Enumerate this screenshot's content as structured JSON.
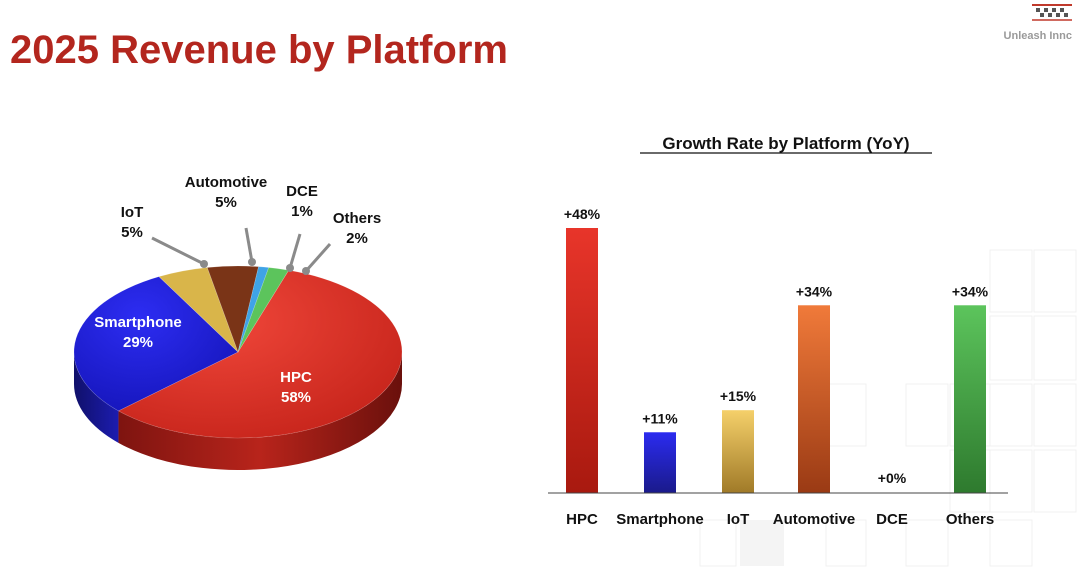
{
  "page": {
    "title": "2025 Revenue by Platform",
    "brand": "Unleash Innc"
  },
  "colors": {
    "title": "#b3261e",
    "hpc": "#d52b1e",
    "smartphone": "#1f1fd6",
    "iot": "#d9b54a",
    "automotive": "#8b3a1a",
    "dce": "#3fa3e6",
    "others": "#5cc45c"
  },
  "chart_data": [
    {
      "type": "pie",
      "title": "",
      "slices": [
        {
          "label": "HPC",
          "value": 58,
          "value_label": "58%",
          "color": "#d52b1e"
        },
        {
          "label": "Smartphone",
          "value": 29,
          "value_label": "29%",
          "color": "#1f1fd6"
        },
        {
          "label": "IoT",
          "value": 5,
          "value_label": "5%",
          "color": "#d9b54a"
        },
        {
          "label": "Automotive",
          "value": 5,
          "value_label": "5%",
          "color": "#7a3417"
        },
        {
          "label": "DCE",
          "value": 1,
          "value_label": "1%",
          "color": "#3fa3e6"
        },
        {
          "label": "Others",
          "value": 2,
          "value_label": "2%",
          "color": "#5cc45c"
        }
      ]
    },
    {
      "type": "bar",
      "title": "Growth Rate by Platform (YoY)",
      "categories": [
        "HPC",
        "Smartphone",
        "IoT",
        "Automotive",
        "DCE",
        "Others"
      ],
      "values": [
        48,
        11,
        15,
        34,
        0,
        34
      ],
      "value_labels": [
        "+48%",
        "+11%",
        "+15%",
        "+34%",
        "+0%",
        "+34%"
      ],
      "colors": [
        [
          "#e8352a",
          "#a8190f"
        ],
        [
          "#2b2bf0",
          "#1a1a8a"
        ],
        [
          "#f5d06a",
          "#a07a28"
        ],
        [
          "#f07a3a",
          "#9a3a14"
        ],
        [
          "#cccccc",
          "#999999"
        ],
        [
          "#5cc45c",
          "#2e7a2e"
        ]
      ],
      "ylim": [
        0,
        48
      ],
      "grid": false
    }
  ]
}
